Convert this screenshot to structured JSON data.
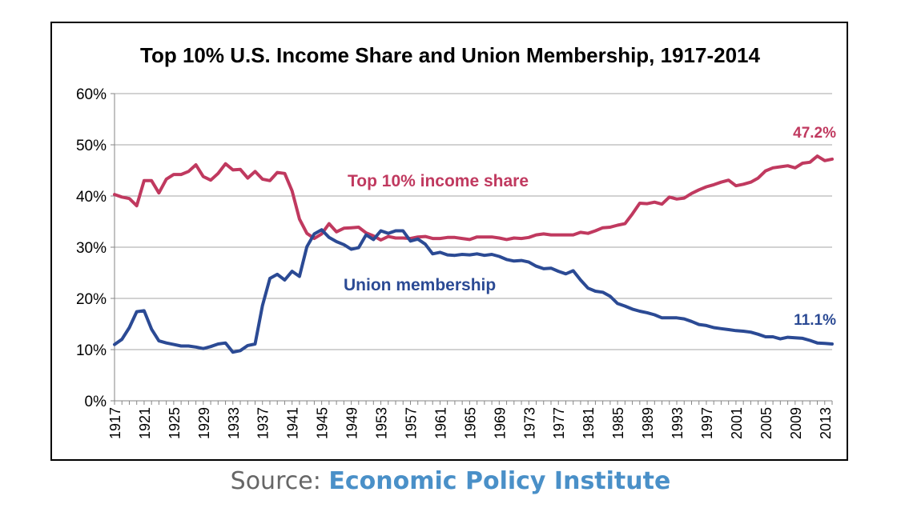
{
  "source": {
    "label": "Source:",
    "name": "Economic Policy Institute"
  },
  "chart_data": {
    "type": "line",
    "title": "Top 10% U.S. Income Share and Union Membership, 1917-2014",
    "xlabel": "",
    "ylabel": "",
    "xlim": [
      1917,
      2014
    ],
    "ylim": [
      0,
      60
    ],
    "grid": true,
    "x_ticks": [
      "1917",
      "1921",
      "1925",
      "1929",
      "1933",
      "1937",
      "1941",
      "1945",
      "1949",
      "1953",
      "1957",
      "1961",
      "1965",
      "1969",
      "1973",
      "1977",
      "1981",
      "1985",
      "1989",
      "1993",
      "1997",
      "2001",
      "2005",
      "2009",
      "2013"
    ],
    "y_ticks": [
      "0%",
      "10%",
      "20%",
      "30%",
      "40%",
      "50%",
      "60%"
    ],
    "annotations": {
      "top_label": "Top 10% income share",
      "union_label": "Union membership",
      "top_end": "47.2%",
      "union_end": "11.1%"
    },
    "colors": {
      "top": "#c0395f",
      "union": "#2b4a94",
      "grid": "#a6a6a6",
      "axis": "#868686"
    },
    "series": [
      {
        "name": "Top 10% income share",
        "x": [
          1917,
          1918,
          1919,
          1920,
          1921,
          1922,
          1923,
          1924,
          1925,
          1926,
          1927,
          1928,
          1929,
          1930,
          1931,
          1932,
          1933,
          1934,
          1935,
          1936,
          1937,
          1938,
          1939,
          1940,
          1941,
          1942,
          1943,
          1944,
          1945,
          1946,
          1947,
          1948,
          1949,
          1950,
          1951,
          1952,
          1953,
          1954,
          1955,
          1956,
          1957,
          1958,
          1959,
          1960,
          1961,
          1962,
          1963,
          1964,
          1965,
          1966,
          1967,
          1968,
          1969,
          1970,
          1971,
          1972,
          1973,
          1974,
          1975,
          1976,
          1977,
          1978,
          1979,
          1980,
          1981,
          1982,
          1983,
          1984,
          1985,
          1986,
          1987,
          1988,
          1989,
          1990,
          1991,
          1992,
          1993,
          1994,
          1995,
          1996,
          1997,
          1998,
          1999,
          2000,
          2001,
          2002,
          2003,
          2004,
          2005,
          2006,
          2007,
          2008,
          2009,
          2010,
          2011,
          2012,
          2013,
          2014
        ],
        "values": [
          40.3,
          39.8,
          39.5,
          38.1,
          43.0,
          43.0,
          40.6,
          43.3,
          44.2,
          44.2,
          44.8,
          46.1,
          43.8,
          43.1,
          44.4,
          46.3,
          45.1,
          45.2,
          43.5,
          44.8,
          43.3,
          43.0,
          44.6,
          44.4,
          41.0,
          35.5,
          32.7,
          31.7,
          32.6,
          34.6,
          33.0,
          33.7,
          33.8,
          33.9,
          32.8,
          32.2,
          31.4,
          32.1,
          31.8,
          31.8,
          31.7,
          32.0,
          32.1,
          31.7,
          31.7,
          31.9,
          31.9,
          31.7,
          31.5,
          32.0,
          32.0,
          32.0,
          31.8,
          31.5,
          31.8,
          31.7,
          31.9,
          32.4,
          32.6,
          32.4,
          32.4,
          32.4,
          32.4,
          32.9,
          32.7,
          33.2,
          33.8,
          33.9,
          34.3,
          34.6,
          36.5,
          38.6,
          38.5,
          38.8,
          38.4,
          39.8,
          39.4,
          39.6,
          40.5,
          41.2,
          41.8,
          42.2,
          42.7,
          43.1,
          42.0,
          42.3,
          42.7,
          43.5,
          44.9,
          45.5,
          45.7,
          45.9,
          45.5,
          46.4,
          46.6,
          47.8,
          46.9,
          47.2
        ]
      },
      {
        "name": "Union membership",
        "x": [
          1917,
          1918,
          1919,
          1920,
          1921,
          1922,
          1923,
          1924,
          1925,
          1926,
          1927,
          1928,
          1929,
          1930,
          1931,
          1932,
          1933,
          1934,
          1935,
          1936,
          1937,
          1938,
          1939,
          1940,
          1941,
          1942,
          1943,
          1944,
          1945,
          1946,
          1947,
          1948,
          1949,
          1950,
          1951,
          1952,
          1953,
          1954,
          1955,
          1956,
          1957,
          1958,
          1959,
          1960,
          1961,
          1962,
          1963,
          1964,
          1965,
          1966,
          1967,
          1968,
          1969,
          1970,
          1971,
          1972,
          1973,
          1974,
          1975,
          1976,
          1977,
          1978,
          1979,
          1980,
          1981,
          1982,
          1983,
          1984,
          1985,
          1986,
          1987,
          1988,
          1989,
          1990,
          1991,
          1992,
          1993,
          1994,
          1995,
          1996,
          1997,
          1998,
          1999,
          2000,
          2001,
          2002,
          2003,
          2004,
          2005,
          2006,
          2007,
          2008,
          2009,
          2010,
          2011,
          2012,
          2013,
          2014
        ],
        "values": [
          11.0,
          12.0,
          14.3,
          17.4,
          17.6,
          14.0,
          11.7,
          11.3,
          11.0,
          10.7,
          10.7,
          10.5,
          10.2,
          10.6,
          11.1,
          11.3,
          9.5,
          9.8,
          10.8,
          11.1,
          18.6,
          23.9,
          24.7,
          23.6,
          25.3,
          24.3,
          30.1,
          32.6,
          33.4,
          31.9,
          31.1,
          30.5,
          29.6,
          29.9,
          32.4,
          31.5,
          33.2,
          32.7,
          33.2,
          33.2,
          31.2,
          31.6,
          30.6,
          28.7,
          29.0,
          28.5,
          28.4,
          28.6,
          28.5,
          28.7,
          28.4,
          28.6,
          28.2,
          27.6,
          27.3,
          27.4,
          27.1,
          26.3,
          25.8,
          25.9,
          25.3,
          24.8,
          25.4,
          23.6,
          22.0,
          21.4,
          21.2,
          20.4,
          19.0,
          18.5,
          17.9,
          17.5,
          17.2,
          16.8,
          16.2,
          16.2,
          16.2,
          16.0,
          15.5,
          14.9,
          14.7,
          14.3,
          14.1,
          13.9,
          13.7,
          13.6,
          13.4,
          13.0,
          12.5,
          12.5,
          12.1,
          12.4,
          12.3,
          12.2,
          11.8,
          11.3,
          11.2,
          11.1
        ]
      }
    ]
  }
}
